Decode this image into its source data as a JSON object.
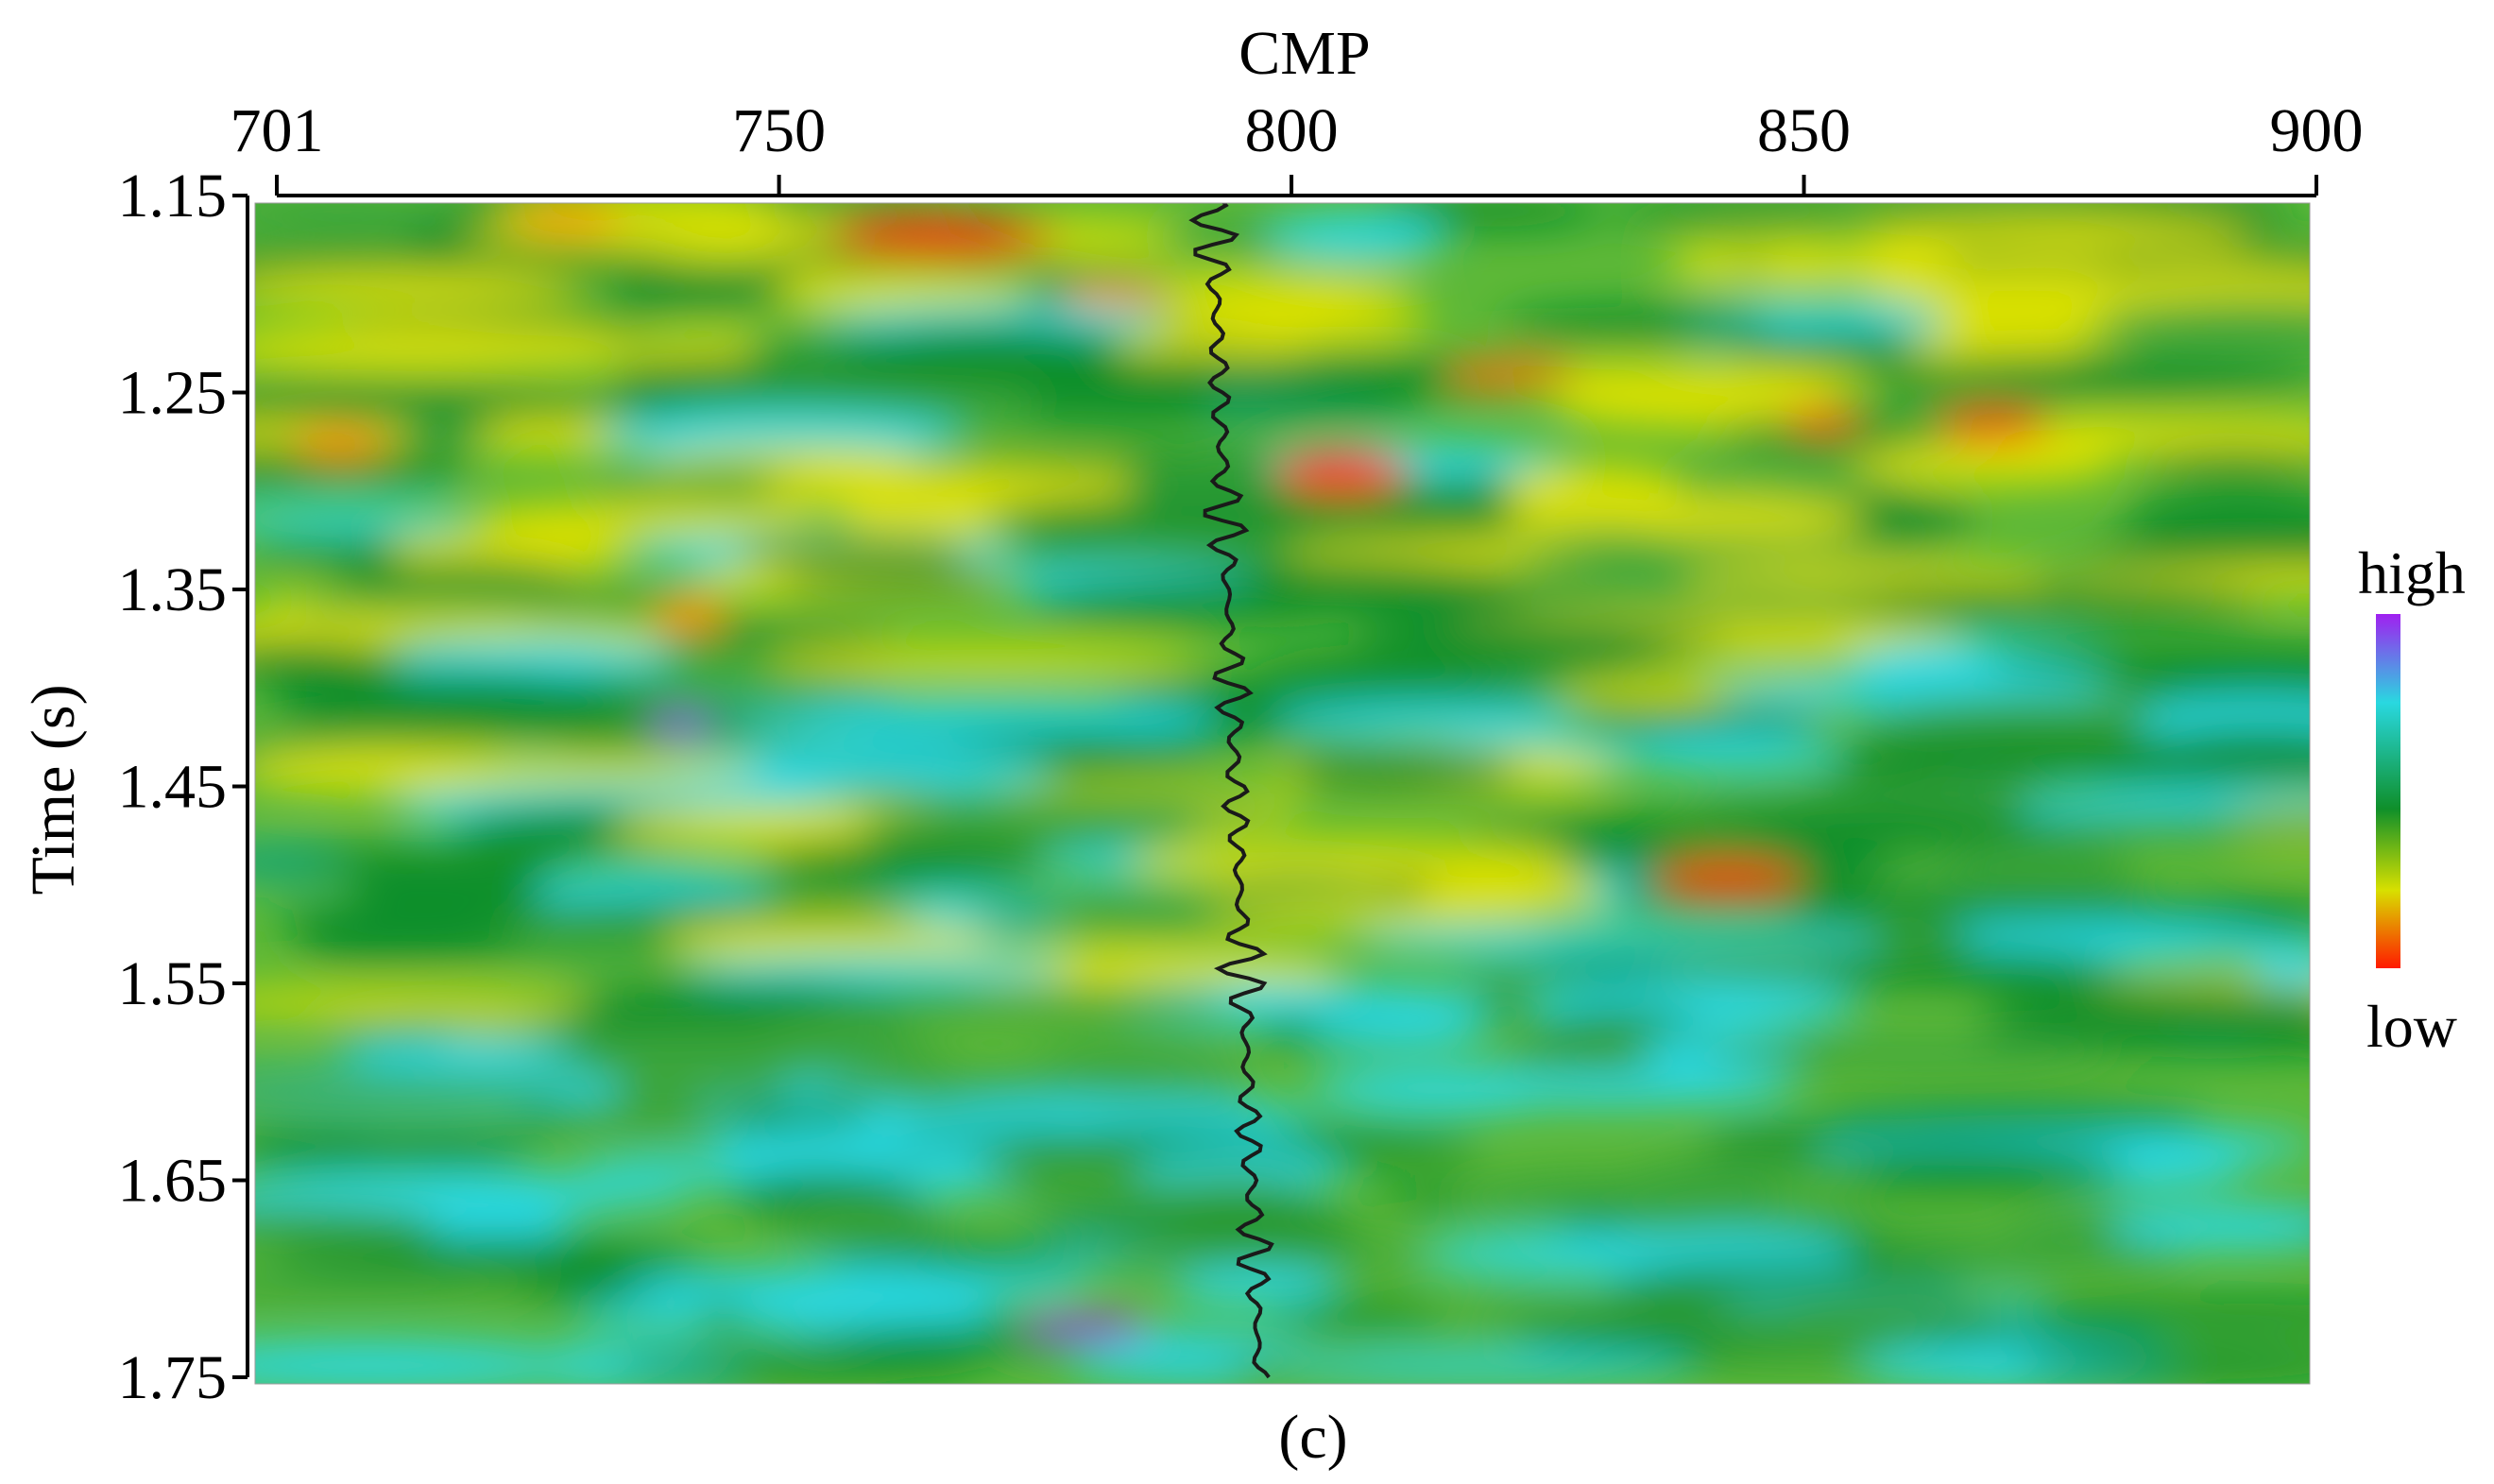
{
  "chart_data": {
    "type": "heatmap",
    "title": "",
    "xlabel": "CMP",
    "ylabel": "Time (s)",
    "xlim": [
      701,
      900
    ],
    "ylim": [
      1.15,
      1.75
    ],
    "x_ticks": [
      "701",
      "750",
      "800",
      "850",
      "900"
    ],
    "y_ticks": [
      "1.15",
      "1.25",
      "1.35",
      "1.45",
      "1.55",
      "1.65",
      "1.75"
    ],
    "colorbar": {
      "high_label": "high",
      "low_label": "low",
      "colors": [
        "#a020f0",
        "#29d8e0",
        "#0f8f2a",
        "#d8e000",
        "#ff1a00"
      ]
    },
    "well_trace": {
      "cmp": 795,
      "time_range": [
        1.15,
        1.75
      ]
    },
    "caption": "(c)"
  }
}
